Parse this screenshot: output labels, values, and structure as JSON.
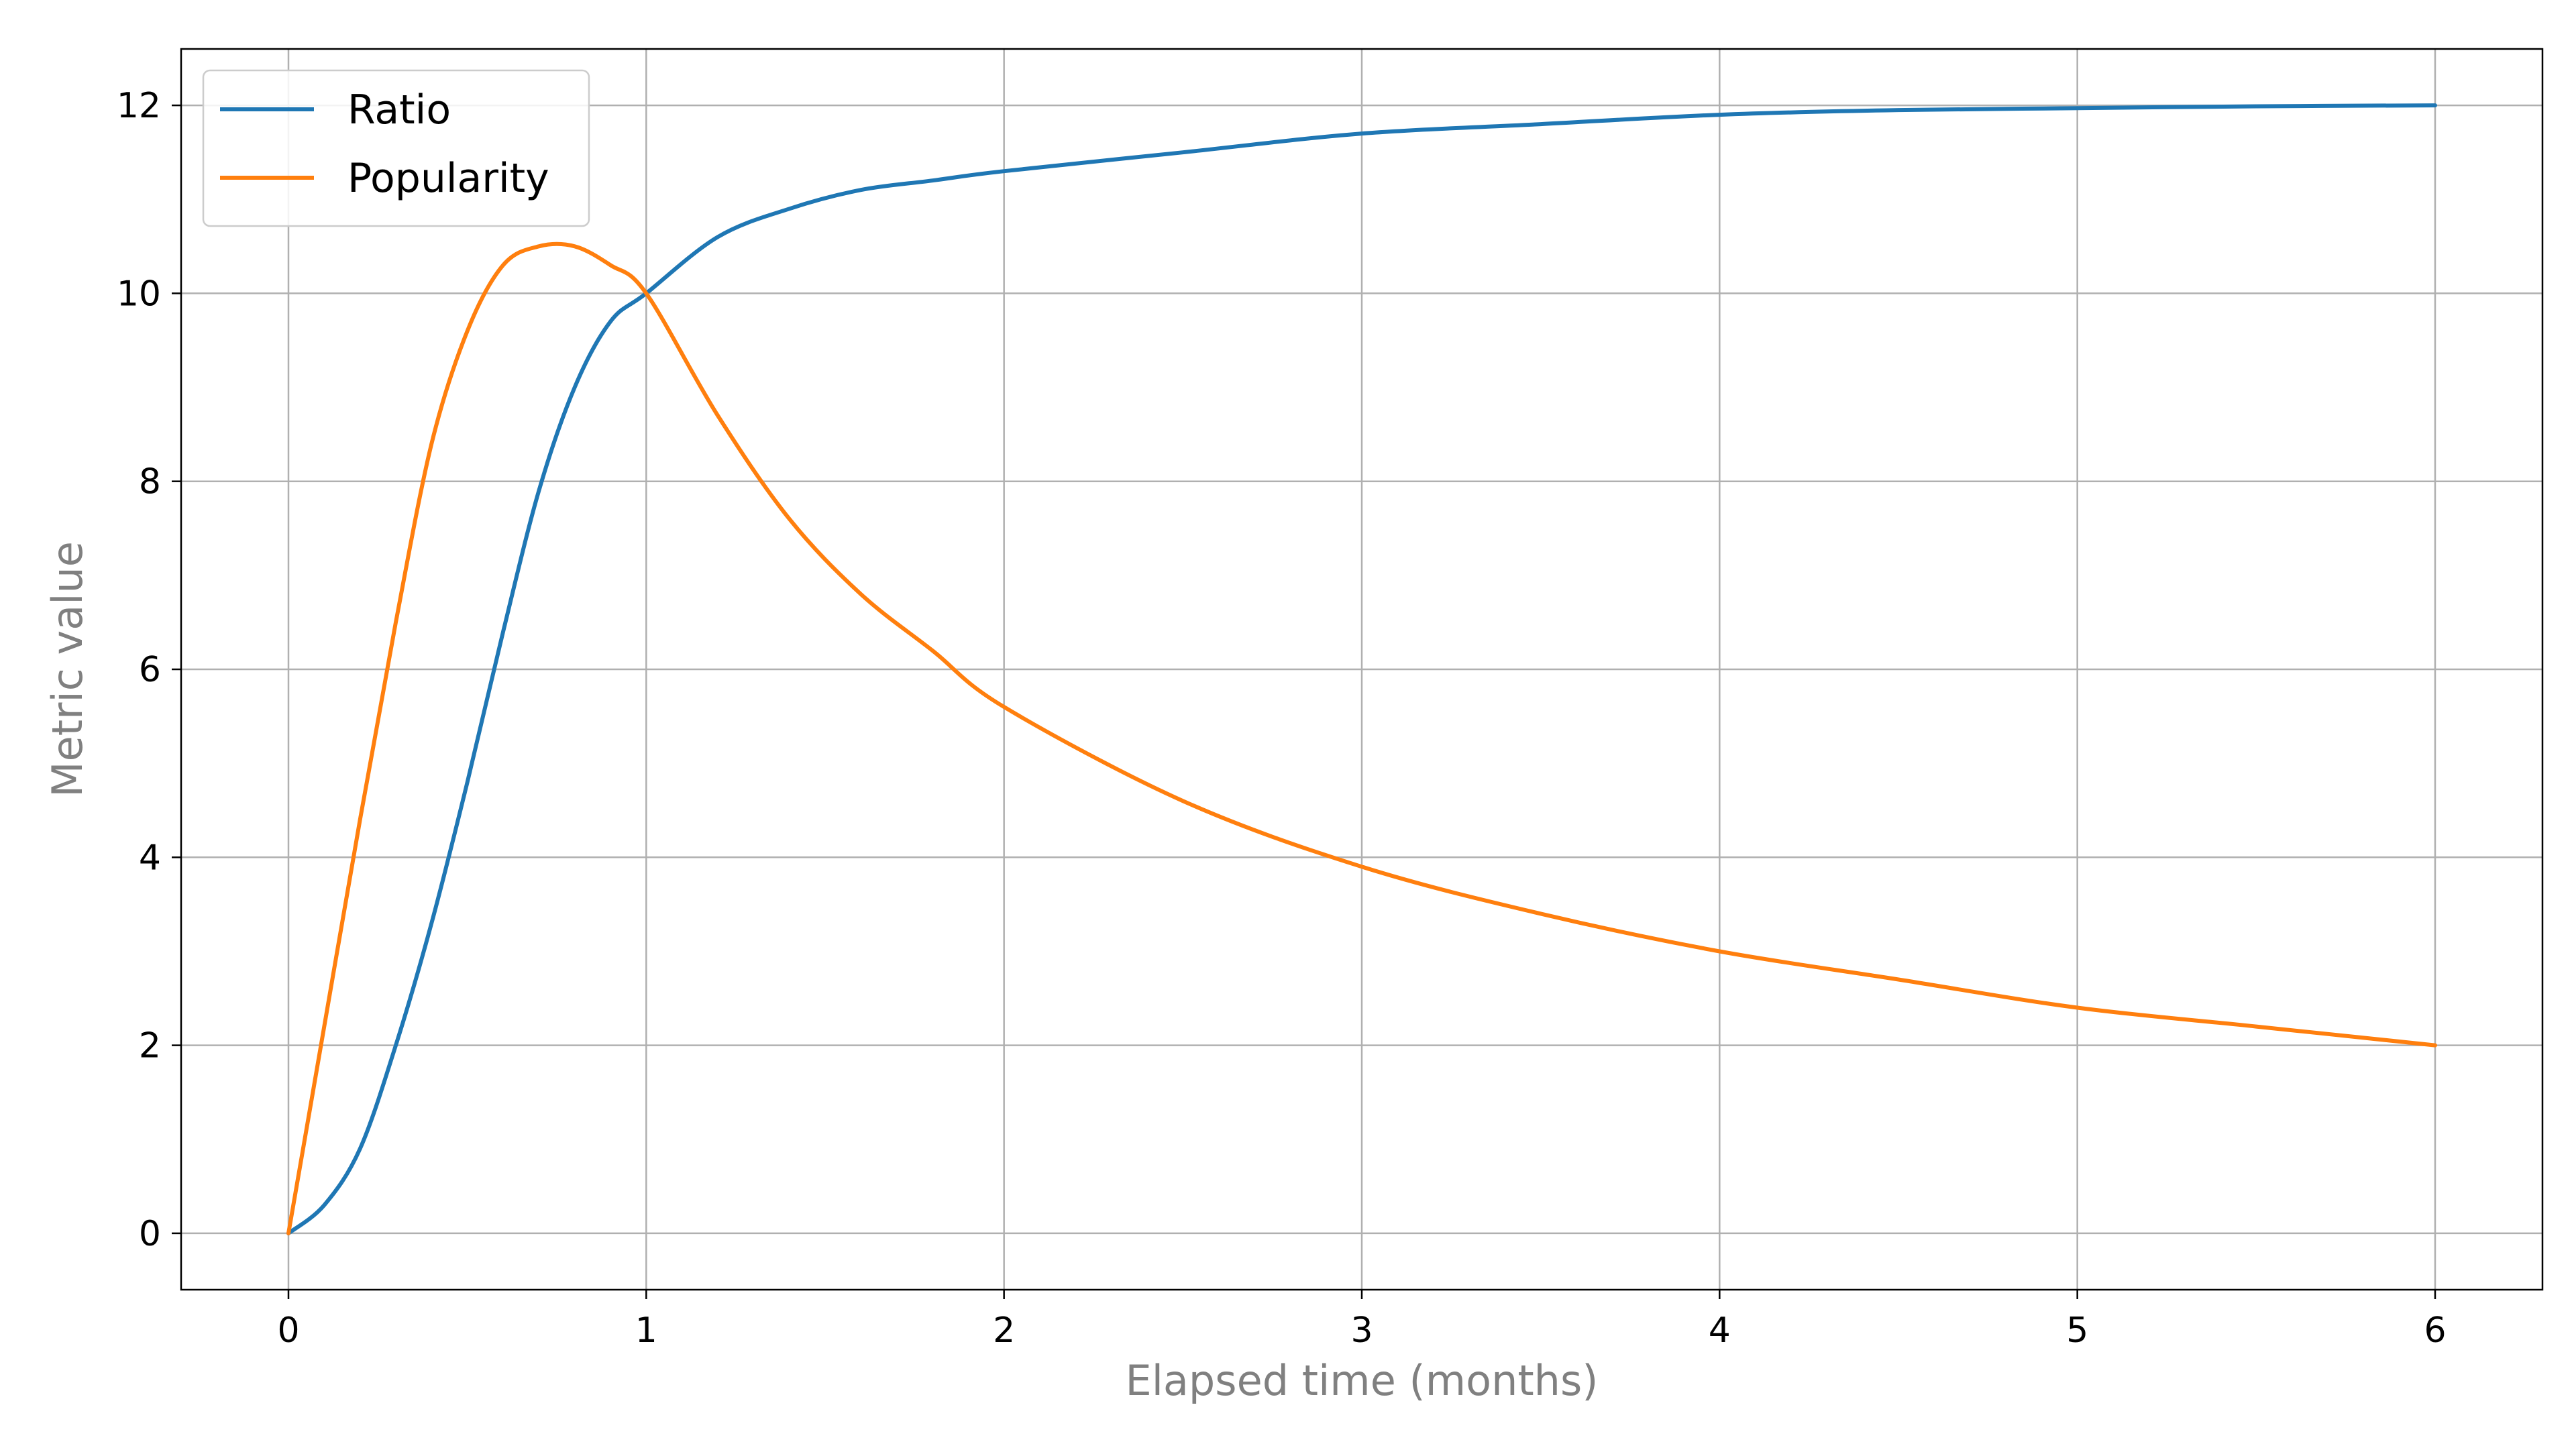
{
  "chart_data": {
    "type": "line",
    "title": "",
    "xlabel": "Elapsed time (months)",
    "ylabel": "Metric value",
    "xlim": [
      -0.3,
      6.3
    ],
    "ylim": [
      -0.6,
      12.6
    ],
    "x_ticks": [
      0,
      1,
      2,
      3,
      4,
      5,
      6
    ],
    "y_ticks": [
      0,
      2,
      4,
      6,
      8,
      10,
      12
    ],
    "grid": true,
    "legend_position": "top-left",
    "x": [
      0,
      0.1,
      0.2,
      0.3,
      0.4,
      0.5,
      0.6,
      0.7,
      0.8,
      0.9,
      1.0,
      1.2,
      1.4,
      1.6,
      1.8,
      2.0,
      2.5,
      3.0,
      3.5,
      4.0,
      4.5,
      5.0,
      5.5,
      6.0
    ],
    "series": [
      {
        "name": "Ratio",
        "color": "#1f77b4",
        "values": [
          0,
          0.3,
          0.9,
          2.0,
          3.3,
          4.8,
          6.4,
          7.9,
          9.0,
          9.7,
          10.0,
          10.6,
          10.9,
          11.1,
          11.2,
          11.3,
          11.5,
          11.7,
          11.8,
          11.9,
          11.95,
          11.97,
          11.99,
          12.0
        ]
      },
      {
        "name": "Popularity",
        "color": "#ff7f0e",
        "values": [
          0,
          2.2,
          4.4,
          6.5,
          8.4,
          9.6,
          10.3,
          10.5,
          10.5,
          10.3,
          10.0,
          8.7,
          7.6,
          6.8,
          6.2,
          5.6,
          4.6,
          3.9,
          3.4,
          3.0,
          2.7,
          2.4,
          2.2,
          2.0
        ]
      }
    ]
  }
}
